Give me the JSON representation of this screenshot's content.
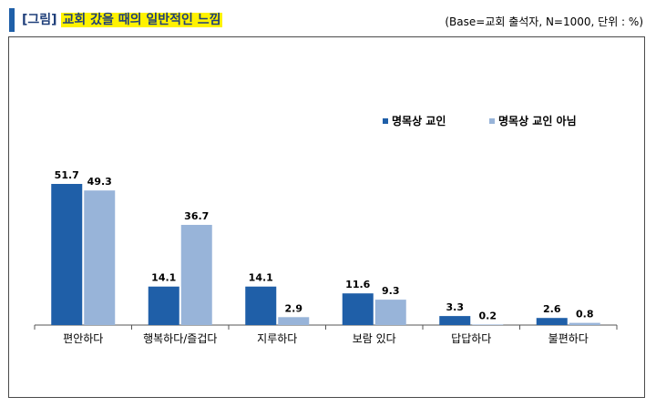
{
  "header": {
    "title_prefix": "[그림]",
    "title": "교회 갔을 때의 일반적인 느낌",
    "base_note": "(Base=교회 출석자, N=1000, 단위 : %)"
  },
  "colors": {
    "accent": "#1f5fa8",
    "series_dark": "#1f5fa8",
    "series_light": "#98b4d9",
    "highlight": "#fff200"
  },
  "chart_data": {
    "type": "bar",
    "categories": [
      "편안하다",
      "행복하다/즐겁다",
      "지루하다",
      "보람 있다",
      "답답하다",
      "불편하다"
    ],
    "series": [
      {
        "name": "명목상 교인",
        "values": [
          51.7,
          14.1,
          14.1,
          11.6,
          3.3,
          2.6
        ]
      },
      {
        "name": "명목상 교인 아님",
        "values": [
          49.3,
          36.7,
          2.9,
          9.3,
          0.2,
          0.8
        ]
      }
    ],
    "ylim": [
      0,
      60
    ],
    "grid": false,
    "legend_position": "top-right",
    "data_labels": true
  }
}
